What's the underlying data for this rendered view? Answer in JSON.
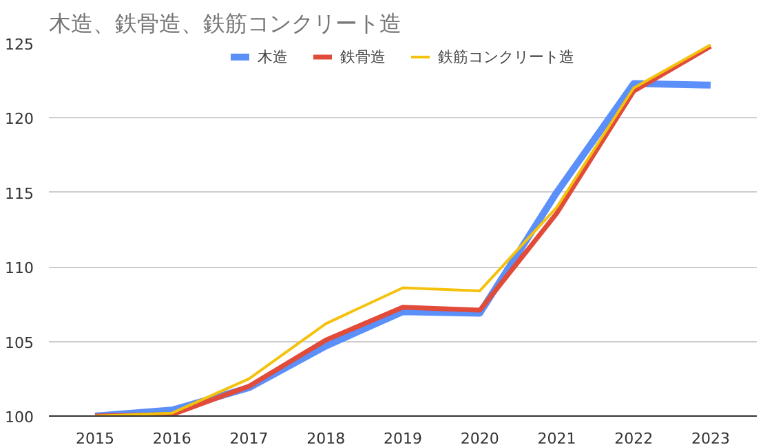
{
  "chart_data": {
    "type": "line",
    "title": "木造、鉄骨造、鉄筋コンクリート造",
    "categories": [
      "2015",
      "2016",
      "2017",
      "2018",
      "2019",
      "2020",
      "2021",
      "2022",
      "2023"
    ],
    "series": [
      {
        "name": "木造",
        "color": "#5b8ff9",
        "values": [
          100,
          100.4,
          101.9,
          104.7,
          107.0,
          106.9,
          115.0,
          122.3,
          122.2
        ]
      },
      {
        "name": "鉄骨造",
        "color": "#e04b3a",
        "values": [
          100,
          100.1,
          102.0,
          105.1,
          107.3,
          107.1,
          113.6,
          121.8,
          124.8
        ]
      },
      {
        "name": "鉄筋コンクリート造",
        "color": "#f4c20d",
        "values": [
          100,
          100.2,
          102.5,
          106.2,
          108.6,
          108.4,
          114.0,
          122.0,
          124.9
        ]
      }
    ],
    "ylim": [
      100,
      125
    ],
    "yticks": [
      100,
      105,
      110,
      115,
      120,
      125
    ],
    "grid": "y",
    "legend": "top",
    "marker": "none",
    "line_style": "solid"
  }
}
